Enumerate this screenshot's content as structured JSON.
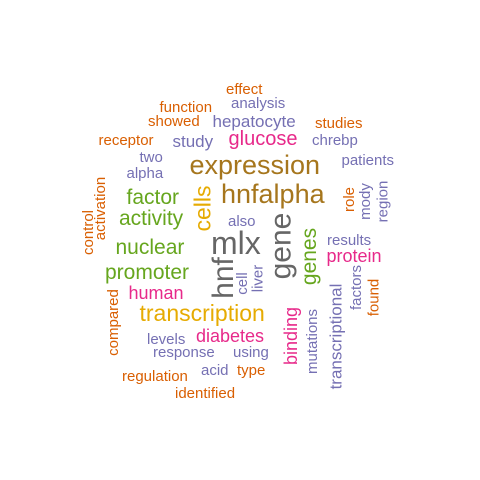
{
  "palette": {
    "orange": "#D95F02",
    "purple": "#7570B3",
    "brown": "#A6761D",
    "green": "#66A61E",
    "magenta": "#E7298A",
    "gold": "#E6AB02",
    "gray": "#666666"
  },
  "words": [
    {
      "text": "effect",
      "color": "orange",
      "vertical": false
    },
    {
      "text": "function",
      "color": "orange",
      "vertical": false
    },
    {
      "text": "analysis",
      "color": "purple",
      "vertical": false
    },
    {
      "text": "showed",
      "color": "orange",
      "vertical": false
    },
    {
      "text": "hepatocyte",
      "color": "purple",
      "vertical": false
    },
    {
      "text": "studies",
      "color": "orange",
      "vertical": false
    },
    {
      "text": "receptor",
      "color": "orange",
      "vertical": false
    },
    {
      "text": "study",
      "color": "purple",
      "vertical": false
    },
    {
      "text": "glucose",
      "color": "magenta",
      "vertical": false
    },
    {
      "text": "chrebp",
      "color": "purple",
      "vertical": false
    },
    {
      "text": "two",
      "color": "purple",
      "vertical": false
    },
    {
      "text": "patients",
      "color": "purple",
      "vertical": false
    },
    {
      "text": "alpha",
      "color": "purple",
      "vertical": false
    },
    {
      "text": "expression",
      "color": "brown",
      "vertical": false
    },
    {
      "text": "activation",
      "color": "orange",
      "vertical": true
    },
    {
      "text": "factor",
      "color": "green",
      "vertical": false
    },
    {
      "text": "hnfalpha",
      "color": "brown",
      "vertical": false
    },
    {
      "text": "role",
      "color": "orange",
      "vertical": true
    },
    {
      "text": "mody",
      "color": "purple",
      "vertical": true
    },
    {
      "text": "region",
      "color": "purple",
      "vertical": true
    },
    {
      "text": "control",
      "color": "orange",
      "vertical": true
    },
    {
      "text": "activity",
      "color": "green",
      "vertical": false
    },
    {
      "text": "cells",
      "color": "gold",
      "vertical": true
    },
    {
      "text": "also",
      "color": "purple",
      "vertical": false
    },
    {
      "text": "gene",
      "color": "gray",
      "vertical": true
    },
    {
      "text": "results",
      "color": "purple",
      "vertical": false
    },
    {
      "text": "nuclear",
      "color": "green",
      "vertical": false
    },
    {
      "text": "mlx",
      "color": "gray",
      "vertical": false
    },
    {
      "text": "genes",
      "color": "green",
      "vertical": true
    },
    {
      "text": "protein",
      "color": "magenta",
      "vertical": false
    },
    {
      "text": "promoter",
      "color": "green",
      "vertical": false
    },
    {
      "text": "hnf",
      "color": "gray",
      "vertical": true
    },
    {
      "text": "cell",
      "color": "purple",
      "vertical": true
    },
    {
      "text": "liver",
      "color": "purple",
      "vertical": true
    },
    {
      "text": "factors",
      "color": "purple",
      "vertical": true
    },
    {
      "text": "found",
      "color": "orange",
      "vertical": true
    },
    {
      "text": "human",
      "color": "magenta",
      "vertical": false
    },
    {
      "text": "transcriptional",
      "color": "purple",
      "vertical": true
    },
    {
      "text": "compared",
      "color": "orange",
      "vertical": true
    },
    {
      "text": "transcription",
      "color": "gold",
      "vertical": false
    },
    {
      "text": "binding",
      "color": "magenta",
      "vertical": true
    },
    {
      "text": "mutations",
      "color": "purple",
      "vertical": true
    },
    {
      "text": "levels",
      "color": "purple",
      "vertical": false
    },
    {
      "text": "diabetes",
      "color": "magenta",
      "vertical": false
    },
    {
      "text": "response",
      "color": "purple",
      "vertical": false
    },
    {
      "text": "using",
      "color": "purple",
      "vertical": false
    },
    {
      "text": "acid",
      "color": "purple",
      "vertical": false
    },
    {
      "text": "type",
      "color": "orange",
      "vertical": false
    },
    {
      "text": "regulation",
      "color": "orange",
      "vertical": false
    },
    {
      "text": "identified",
      "color": "orange",
      "vertical": false
    }
  ]
}
